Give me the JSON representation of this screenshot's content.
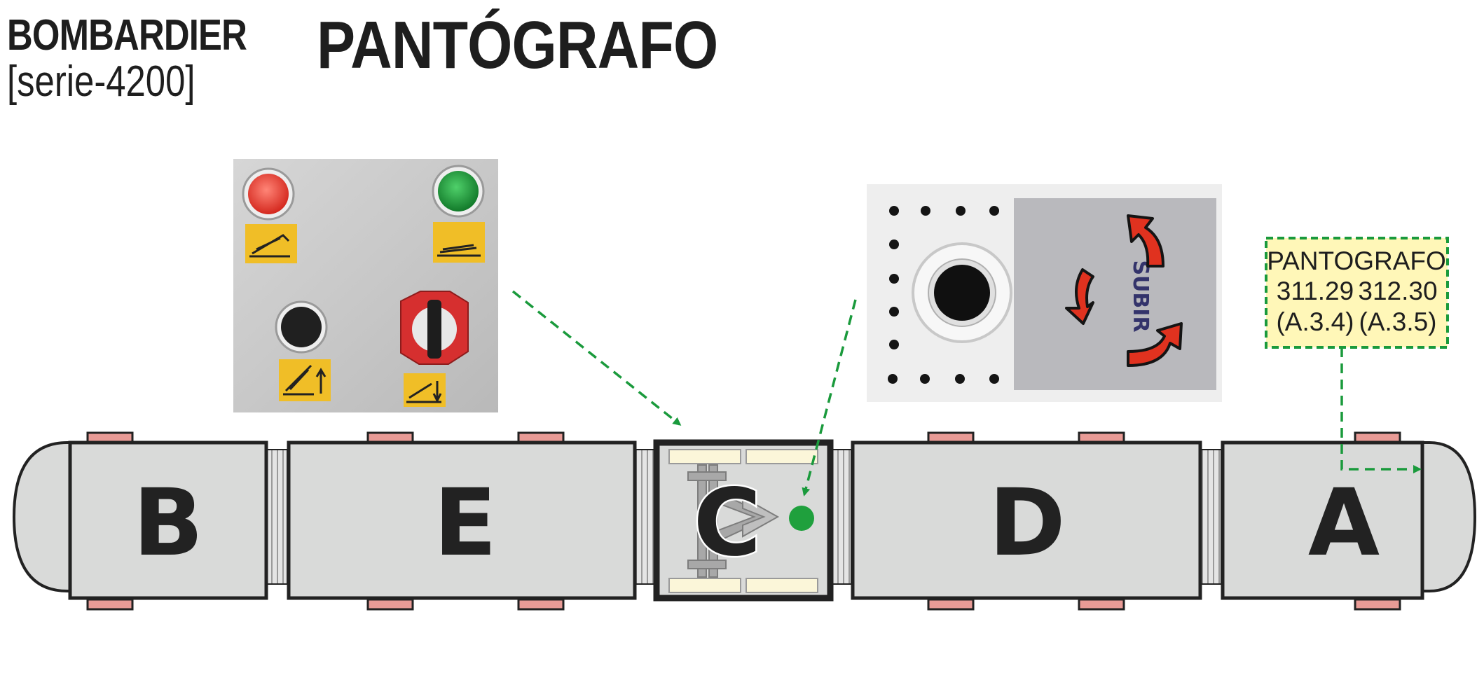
{
  "header": {
    "brand": "BOMBARDIER",
    "series": "[serie-4200]",
    "title": "PANTÓGRAFO"
  },
  "train": {
    "cars": [
      {
        "letter": "B",
        "color": "#d9dad9"
      },
      {
        "letter": "E",
        "color": "#d9dad9"
      },
      {
        "letter": "C",
        "color": "#d9dad9"
      },
      {
        "letter": "D",
        "color": "#d9dad9"
      },
      {
        "letter": "A",
        "color": "#d9dad9"
      }
    ]
  },
  "infobox": {
    "title": "PANTOGRAFO",
    "codes": [
      "311.29",
      "312.30"
    ],
    "refs": [
      "(A.3.4)",
      "(A.3.5)"
    ],
    "background": "#fff7b8",
    "border": "#1a9a3c"
  },
  "control_panel_photo": {
    "buttons": [
      "red-light-button",
      "green-light-button",
      "black-push-button",
      "red-rotary-switch"
    ],
    "colors": {
      "red": "#e3463c",
      "green": "#1f9a3d",
      "black": "#202020",
      "label": "#f0be27"
    }
  },
  "key_panel_photo": {
    "label": "SUBIR",
    "arrow_color": "#e0321f"
  },
  "colors": {
    "pad": "#e99b96",
    "pointer": "#1a9a3c",
    "pantograph_dot": "#1fa03d",
    "seat": "#fbf6d9"
  }
}
